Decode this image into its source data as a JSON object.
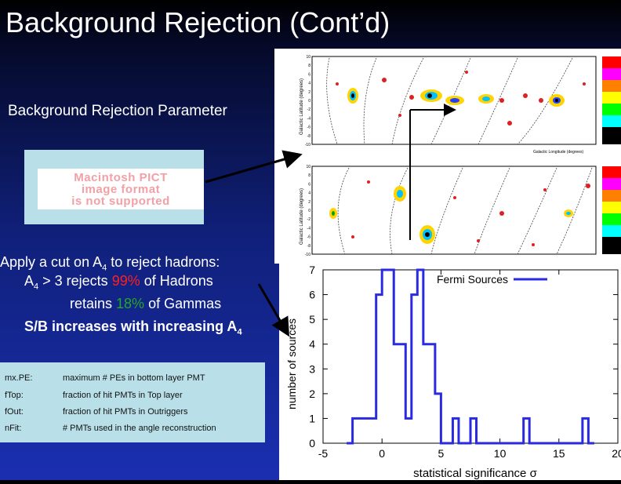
{
  "slide": {
    "title": "Background Rejection (Cont’d)",
    "param_heading": "Background Rejection Parameter",
    "pict_placeholder": [
      "Macintosh PICT",
      "image format",
      "is not supported"
    ],
    "cut_line1": "Apply a cut on A",
    "cut_line1_sub": "4",
    "cut_line1_tail": " to reject hadrons:",
    "cut_line2_a": "A",
    "cut_line2_sub": "4",
    "cut_line2_b": " > 3 rejects ",
    "cut_line2_pct": "99%",
    "cut_line2_c": " of Hadrons",
    "cut_line3_a": "retains ",
    "cut_line3_pct": "18%",
    "cut_line3_b": " of Gammas",
    "cut_line4_a": "S/B increases with increasing A",
    "cut_line4_sub": "4",
    "colors": {
      "hadron_pct": "#ff2020",
      "gamma_pct": "#22aa22",
      "hist_line": "#2a2ae0",
      "bg_blue": "#1a2fb0"
    }
  },
  "param_table": [
    {
      "name": "mx.PE:",
      "desc": "maximum # PEs in bottom layer PMT"
    },
    {
      "name": "fTop:",
      "desc": "fraction of hit PMTs in Top layer"
    },
    {
      "name": "fOut:",
      "desc": "fraction of hit PMTs in Outriggers"
    },
    {
      "name": "nFit:",
      "desc": "# PMTs used in the angle reconstruction"
    }
  ],
  "sky_maps": {
    "ylabel": "Galactic Latitude (degrees)",
    "xlabel": "Galactic Longitude (degrees)",
    "yticks": [
      "10",
      "8",
      "6",
      "4",
      "2",
      "0",
      "-2",
      "-4",
      "-6",
      "-8",
      "-10"
    ],
    "xticks_top": [
      "10",
      "20",
      "30",
      "40",
      "50",
      "60"
    ]
  },
  "chart_data": {
    "type": "line",
    "title": "",
    "legend": "Fermi Sources",
    "legend_position": "top-right",
    "xlabel": "statistical significance σ",
    "ylabel": "number of sources",
    "xlim": [
      -5,
      20
    ],
    "ylim": [
      0,
      7
    ],
    "xticks": [
      -5,
      0,
      5,
      10,
      15,
      20
    ],
    "yticks": [
      0,
      1,
      2,
      3,
      4,
      5,
      6,
      7
    ],
    "step": 0.5,
    "bins": [
      {
        "x": -3.0,
        "y": 0
      },
      {
        "x": -2.5,
        "y": 1
      },
      {
        "x": -2.0,
        "y": 1
      },
      {
        "x": -1.5,
        "y": 1
      },
      {
        "x": -1.0,
        "y": 1
      },
      {
        "x": -0.5,
        "y": 6
      },
      {
        "x": 0.0,
        "y": 7
      },
      {
        "x": 0.5,
        "y": 7
      },
      {
        "x": 1.0,
        "y": 4
      },
      {
        "x": 1.5,
        "y": 4
      },
      {
        "x": 2.0,
        "y": 1
      },
      {
        "x": 2.5,
        "y": 6
      },
      {
        "x": 3.0,
        "y": 7
      },
      {
        "x": 3.5,
        "y": 4
      },
      {
        "x": 4.0,
        "y": 4
      },
      {
        "x": 4.5,
        "y": 2
      },
      {
        "x": 5.0,
        "y": 0
      },
      {
        "x": 5.5,
        "y": 0
      },
      {
        "x": 6.0,
        "y": 1
      },
      {
        "x": 6.5,
        "y": 0
      },
      {
        "x": 7.0,
        "y": 0
      },
      {
        "x": 7.5,
        "y": 1
      },
      {
        "x": 8.0,
        "y": 0
      },
      {
        "x": 12.0,
        "y": 1
      },
      {
        "x": 12.5,
        "y": 0
      },
      {
        "x": 17.0,
        "y": 1
      },
      {
        "x": 17.5,
        "y": 0
      }
    ]
  }
}
